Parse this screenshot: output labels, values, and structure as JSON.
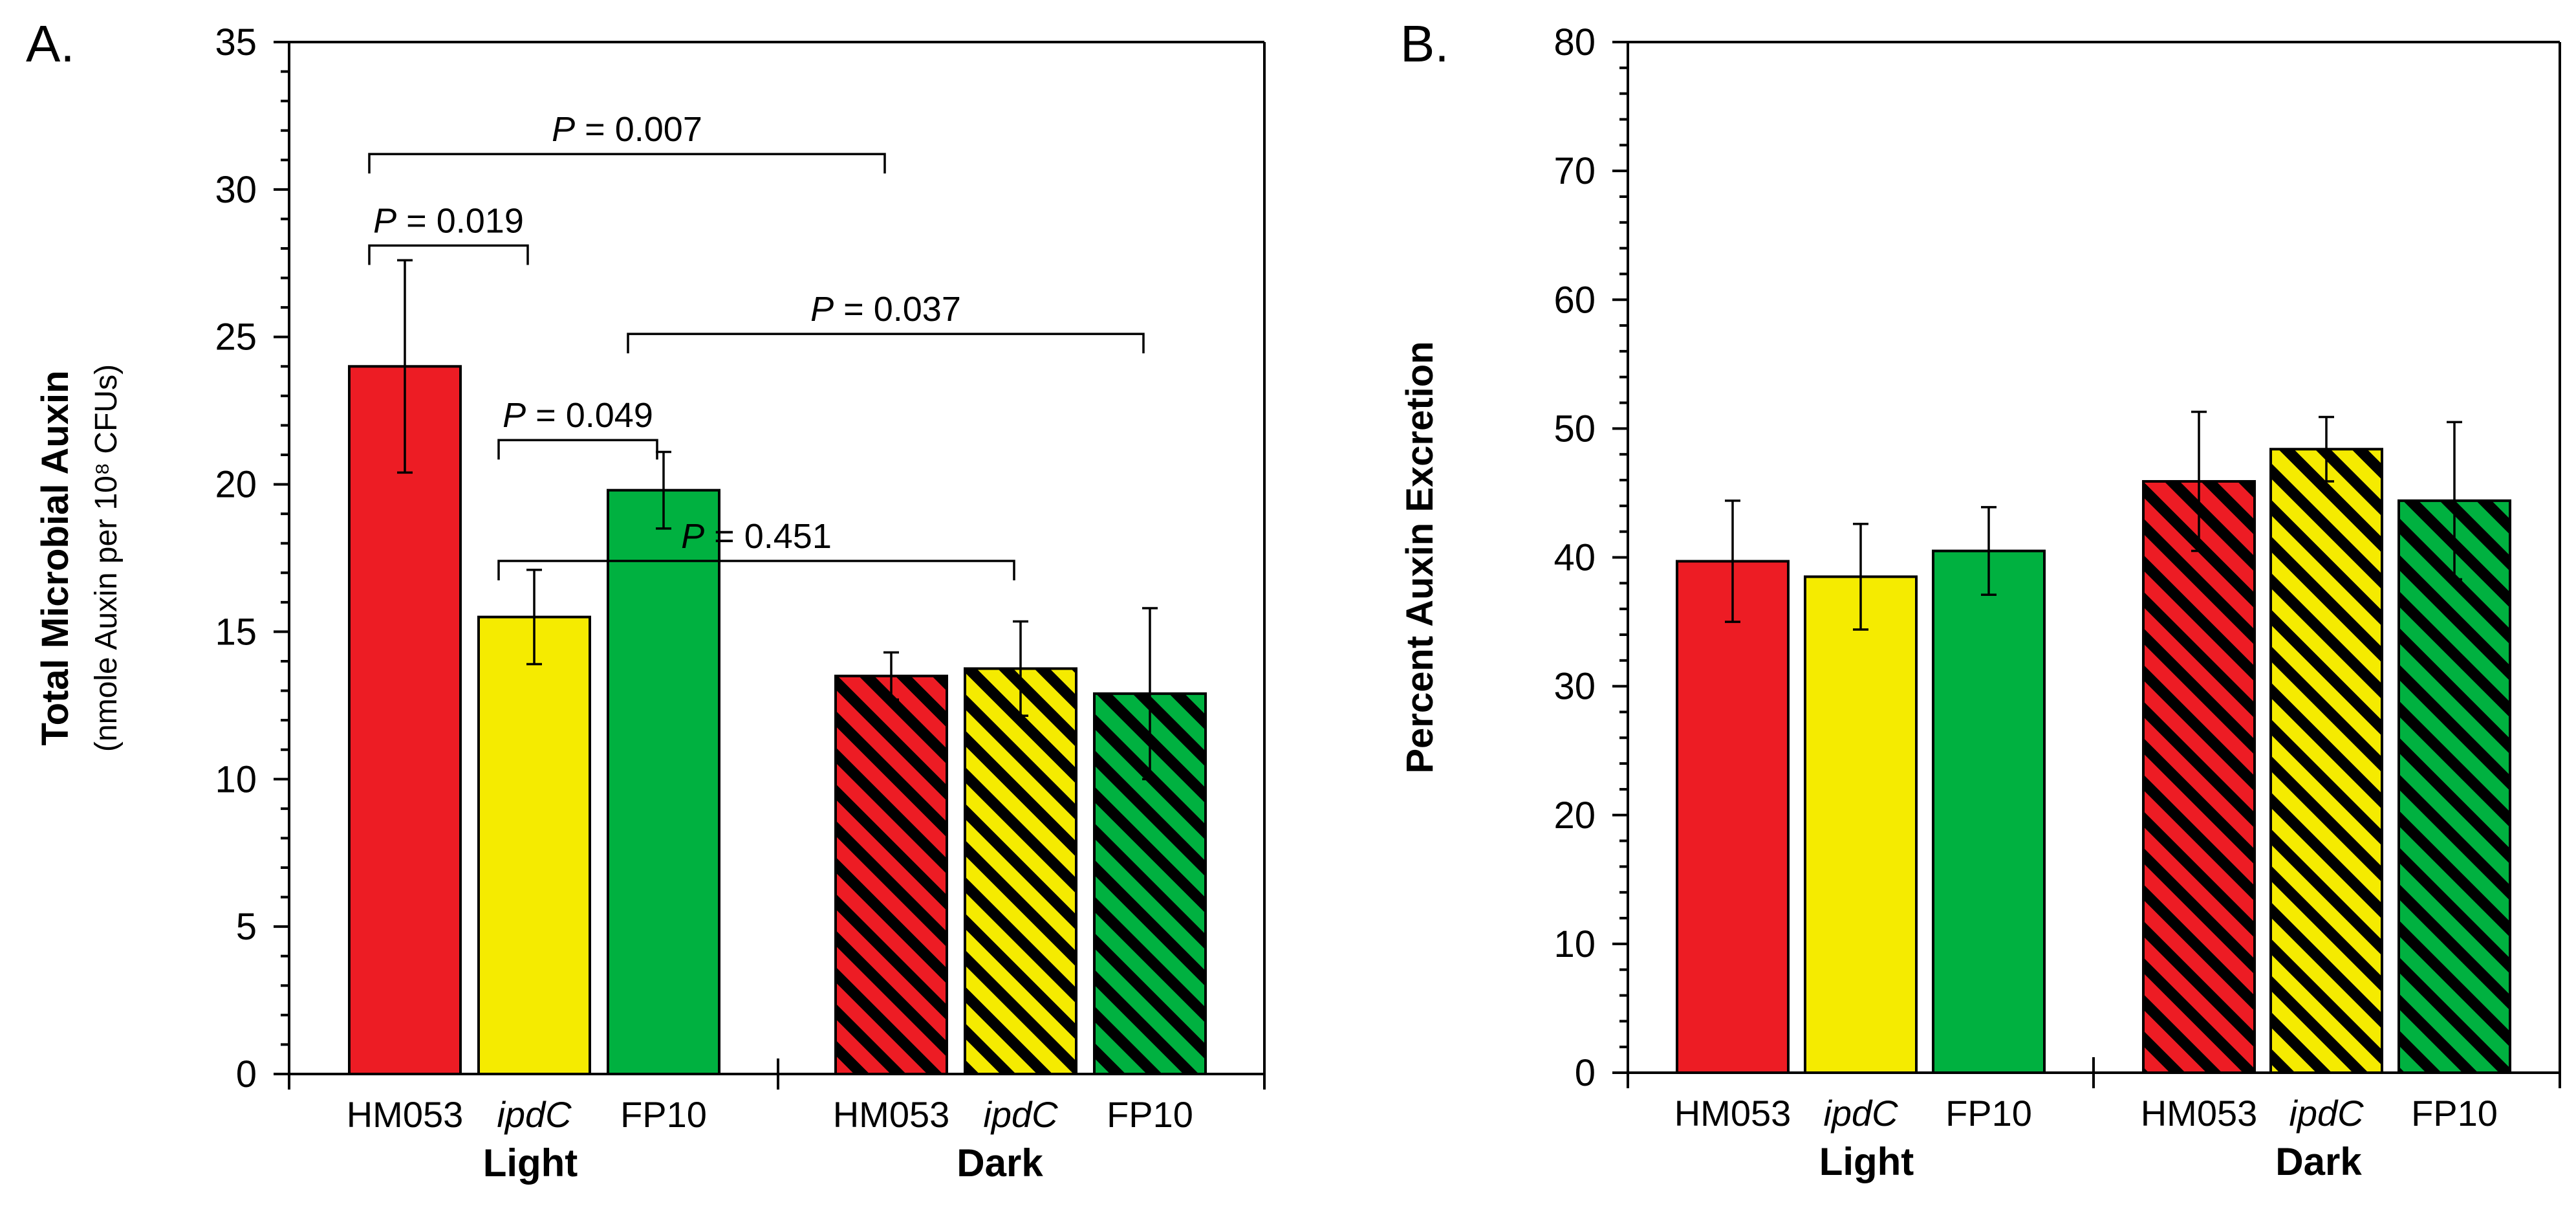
{
  "colors": {
    "red": "#ED1C24",
    "yellow": "#F5EB00",
    "green": "#00B140",
    "stripe": "#000000"
  },
  "chart_data": [
    {
      "type": "bar",
      "panel_label": "A.",
      "ylabel": "Total Microbial Auxin",
      "ylabel_sub": "(nmole Auxin per 10⁸ CFUs)",
      "ylim": [
        0,
        35
      ],
      "yticks": [
        0,
        5,
        10,
        15,
        20,
        25,
        30,
        35
      ],
      "groups": [
        {
          "name": "Light",
          "bars": [
            {
              "category": "HM053",
              "value": 24.0,
              "error": 3.6,
              "color": "red",
              "hatched": false,
              "italic": false
            },
            {
              "category": "ipdC",
              "value": 15.5,
              "error": 1.6,
              "color": "yellow",
              "hatched": false,
              "italic": true
            },
            {
              "category": "FP10",
              "value": 19.8,
              "error": 1.3,
              "color": "green",
              "hatched": false,
              "italic": false
            }
          ]
        },
        {
          "name": "Dark",
          "bars": [
            {
              "category": "HM053",
              "value": 13.5,
              "error": 0.8,
              "color": "red",
              "hatched": true,
              "italic": false
            },
            {
              "category": "ipdC",
              "value": 13.75,
              "error": 1.6,
              "color": "yellow",
              "hatched": true,
              "italic": true
            },
            {
              "category": "FP10",
              "value": 12.9,
              "error": 2.9,
              "color": "green",
              "hatched": true,
              "italic": false
            }
          ]
        }
      ],
      "annotations": [
        {
          "label": "P",
          "text": " = 0.007",
          "from": [
            0,
            0
          ],
          "to": [
            1,
            0
          ],
          "y": 31.2
        },
        {
          "label": "P",
          "text": " = 0.019",
          "from": [
            0,
            0
          ],
          "to": [
            0,
            1
          ],
          "y": 28.1
        },
        {
          "label": "P",
          "text": " = 0.037",
          "from": [
            0,
            2
          ],
          "to": [
            1,
            2
          ],
          "y": 25.1
        },
        {
          "label": "P",
          "text": " = 0.049",
          "from": [
            0,
            1
          ],
          "to": [
            0,
            2
          ],
          "y": 21.5
        },
        {
          "label": "P",
          "text": " = 0.451",
          "from": [
            0,
            1
          ],
          "to": [
            1,
            1
          ],
          "y": 17.4
        }
      ]
    },
    {
      "type": "bar",
      "panel_label": "B.",
      "ylabel": "Percent Auxin Excretion",
      "ylim": [
        0,
        80
      ],
      "yticks": [
        0,
        10,
        20,
        30,
        40,
        50,
        60,
        70,
        80
      ],
      "groups": [
        {
          "name": "Light",
          "bars": [
            {
              "category": "HM053",
              "value": 39.7,
              "error": 4.7,
              "color": "red",
              "hatched": false,
              "italic": false
            },
            {
              "category": "ipdC",
              "value": 38.5,
              "error": 4.1,
              "color": "yellow",
              "hatched": false,
              "italic": true
            },
            {
              "category": "FP10",
              "value": 40.5,
              "error": 3.4,
              "color": "green",
              "hatched": false,
              "italic": false
            }
          ]
        },
        {
          "name": "Dark",
          "bars": [
            {
              "category": "HM053",
              "value": 45.9,
              "error": 5.4,
              "color": "red",
              "hatched": true,
              "italic": false
            },
            {
              "category": "ipdC",
              "value": 48.4,
              "error": 2.5,
              "color": "yellow",
              "hatched": true,
              "italic": true
            },
            {
              "category": "FP10",
              "value": 44.4,
              "error": 6.1,
              "color": "green",
              "hatched": true,
              "italic": false
            }
          ]
        }
      ],
      "annotations": []
    }
  ]
}
